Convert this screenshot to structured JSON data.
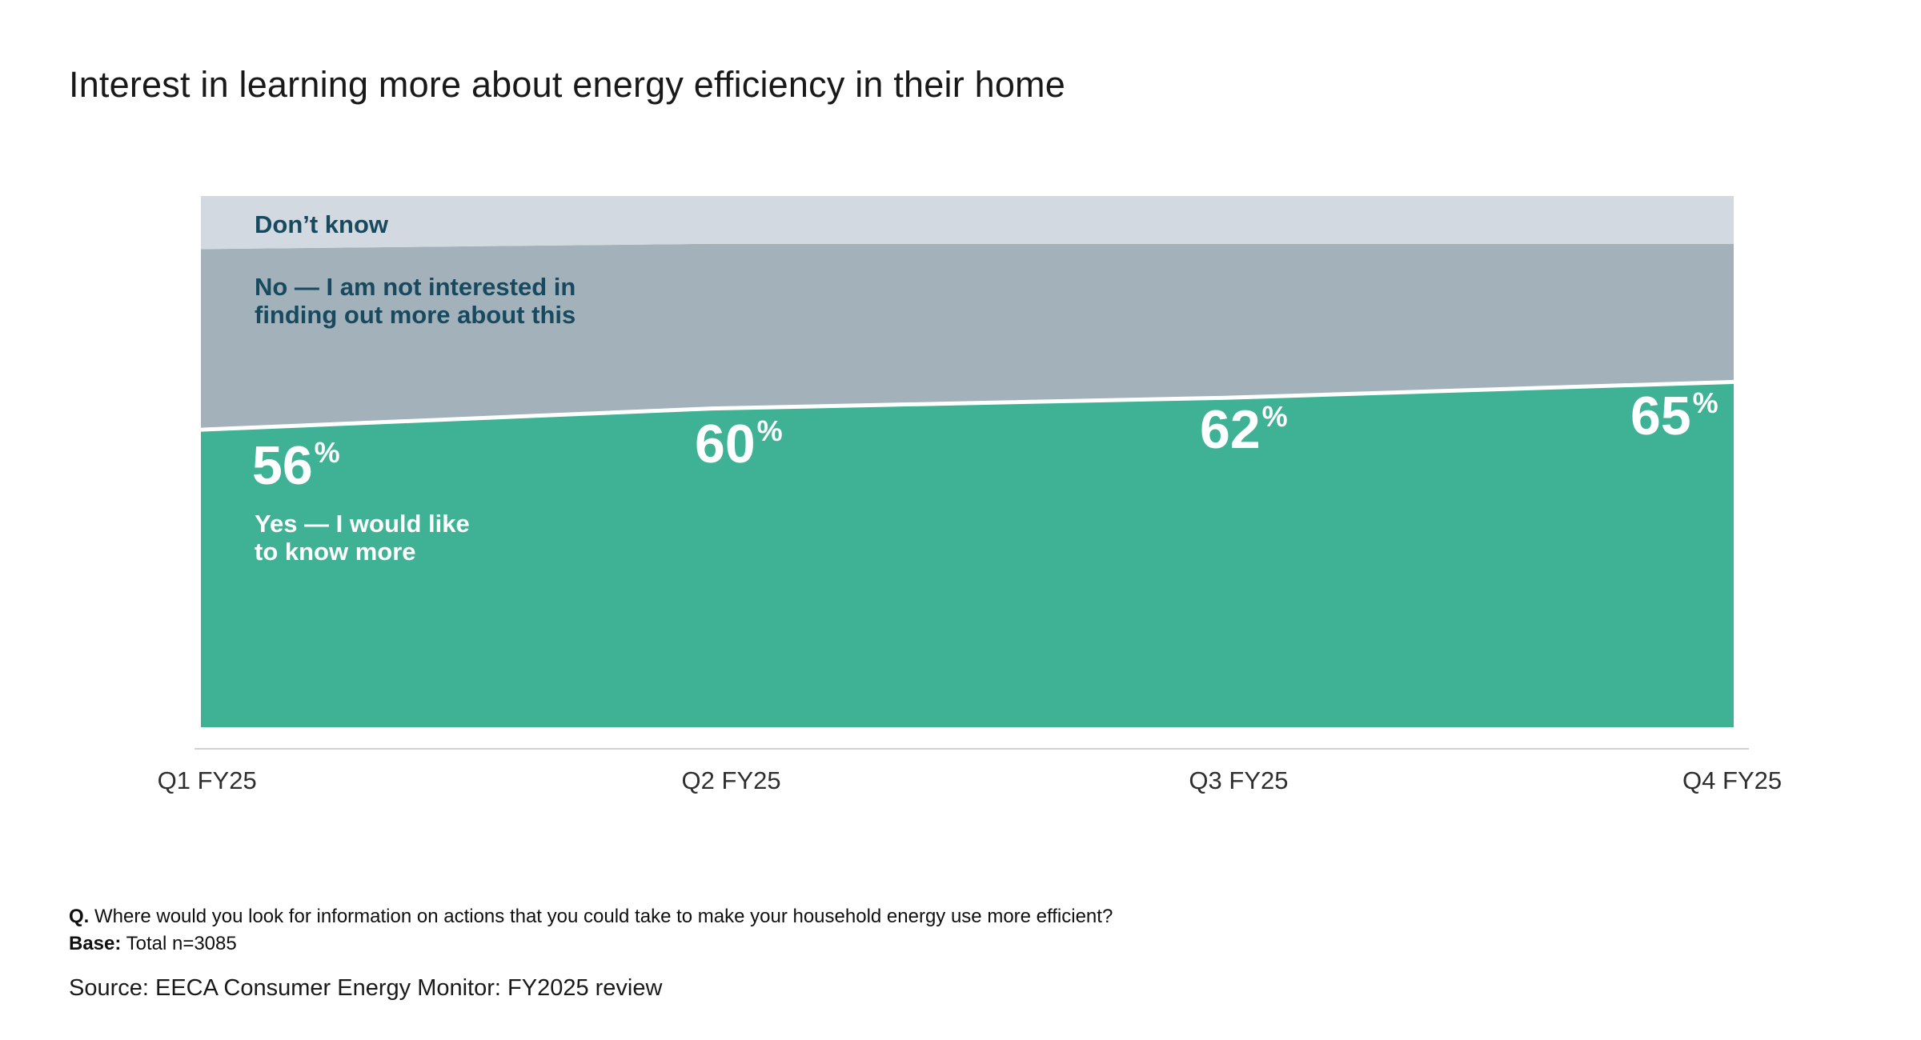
{
  "page": {
    "title": "Interest in learning more about energy efficiency in their home"
  },
  "chart_data": {
    "type": "area",
    "stacked": true,
    "title": "Interest in learning more about energy efficiency in their home",
    "x_categories": [
      "Q1 FY25",
      "Q2 FY25",
      "Q3 FY25",
      "Q4 FY25"
    ],
    "series": [
      {
        "name": "Yes — I would like to know more",
        "values": [
          56,
          60,
          62,
          65
        ],
        "color": "#3FB295",
        "value_labels_shown": true
      },
      {
        "name": "No — I am not interested in finding out more about this",
        "values": [
          34,
          31,
          29,
          26
        ],
        "color": "#A2B1BA",
        "value_labels_shown": false
      },
      {
        "name": "Don’t know",
        "values": [
          10,
          9,
          9,
          9
        ],
        "color": "#D2D9E0",
        "value_labels_shown": false
      }
    ],
    "value_label_suffix": "%",
    "ylim": [
      0,
      100
    ],
    "grid": false,
    "legend_position": "labels inside chart bands"
  },
  "chart_labels": {
    "dont_know": "Don’t know",
    "no_line1": "No — I am not interested in",
    "no_line2": "finding out more about this",
    "yes_line1": "Yes — I would like",
    "yes_line2": "to know more",
    "pct_suffix": "%"
  },
  "footnotes": {
    "q_prefix": "Q.",
    "q_text": "Where would you look for information on actions that you could take to make your household energy use more efficient?",
    "base_prefix": "Base:",
    "base_text": "Total n=3085",
    "source": "Source: EECA Consumer Energy Monitor: FY2025 review"
  },
  "colors": {
    "yes_green": "#3FB295",
    "no_gray": "#A2B1BA",
    "dont_know_gray": "#D2D9E0",
    "label_navy": "#17495F",
    "boundary_line": "#FFFFFF",
    "axis_line": "#D2D2D2"
  }
}
